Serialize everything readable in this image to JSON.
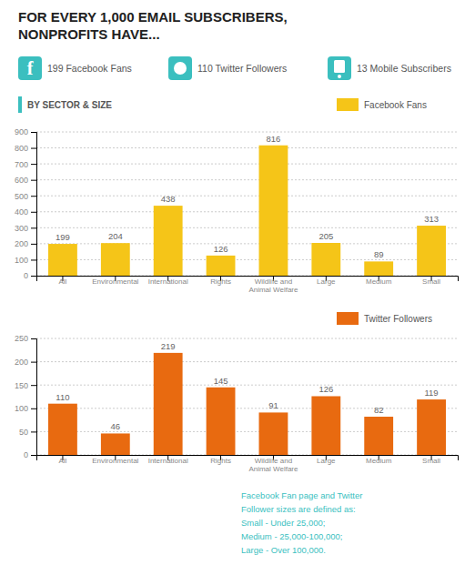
{
  "chart_data": [
    {
      "type": "bar",
      "title": "FOR EVERY 1,000 EMAIL SUBSCRIBERS,\nNONPROFITS HAVE...",
      "annotations": [
        "f",
        "199 Facebook Fans",
        "110 Twitter Followers",
        "13 Mobile Subscribers",
        "BY SECTOR & SIZE"
      ],
      "categories": [
        "All",
        "Environmental",
        "International",
        "Rights",
        "Wildlife and\nAnimal Welfare",
        "Large",
        "Medium",
        "Small"
      ],
      "series": [
        {
          "name": "Facebook Fans",
          "color": "#F5C518",
          "values": [
            199,
            204,
            438,
            126,
            816,
            205,
            89,
            313
          ]
        }
      ],
      "ylim": [
        0,
        900
      ],
      "yticks": [
        0,
        100,
        200,
        300,
        400,
        500,
        600,
        700,
        800,
        900
      ],
      "grid": true,
      "legend": "upper right",
      "data_labels": true
    },
    {
      "type": "bar",
      "annotations": [
        "Facebook Fan page and Twitter\nFollower sizes are defined as:\nSmall - Under 25,000;\nMedium - 25,000-100,000;\nLarge - Over 100,000."
      ],
      "categories": [
        "All",
        "Environmental",
        "International",
        "Rights",
        "Wildlife and\nAnimal Welfare",
        "Large",
        "Medium",
        "Small"
      ],
      "series": [
        {
          "name": "Twitter Followers",
          "color": "#E86A10",
          "values": [
            110,
            46,
            219,
            145,
            91,
            126,
            82,
            119
          ]
        }
      ],
      "ylim": [
        0,
        250
      ],
      "yticks": [
        0,
        50,
        100,
        150,
        200,
        250
      ],
      "grid": true,
      "legend": "upper right",
      "data_labels": true
    }
  ]
}
